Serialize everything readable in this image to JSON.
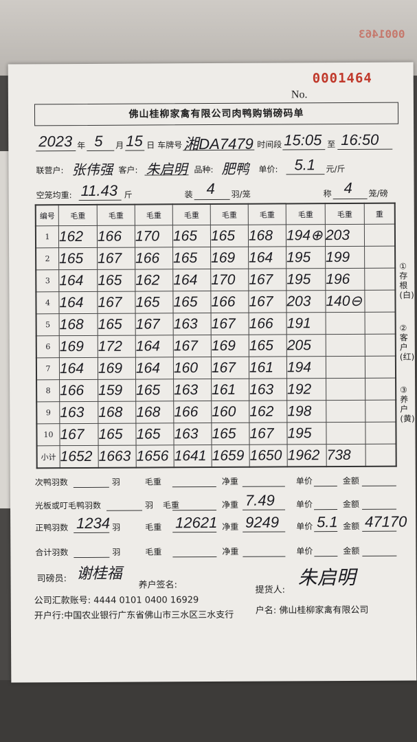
{
  "serial_no": "0001464",
  "no_label": "No.",
  "title": "佛山桂柳家禽有限公司肉鸭购销磅码单",
  "header": {
    "year": "2023",
    "year_label": "年",
    "month": "5",
    "month_label": "月",
    "day": "15",
    "day_label": "日",
    "plate_label": "车牌号",
    "plate": "湘DA7479",
    "time_label": "时间段",
    "time_from": "15:05",
    "to_label": "至",
    "time_to": "16:50",
    "partner_label": "联营户:",
    "partner": "张伟强",
    "customer_label": "客户:",
    "customer": "朱启明",
    "breed_label": "品种:",
    "breed": "肥鸭",
    "price_label": "单价:",
    "price": "5.1",
    "price_unit": "元/斤",
    "cage_weight_label": "空笼均重:",
    "cage_weight": "11.43",
    "cage_weight_unit": "斤",
    "load_label": "装",
    "per_cage": "4",
    "per_cage_unit": "羽/笼",
    "weigh_label": "称",
    "cages_per_weigh": "4",
    "cages_per_weigh_unit": "笼/磅"
  },
  "table": {
    "headers": [
      "编号",
      "毛重",
      "毛重",
      "毛重",
      "毛重",
      "毛重",
      "毛重",
      "毛重",
      "毛重",
      "重"
    ],
    "rows": [
      [
        "1",
        "162",
        "166",
        "170",
        "165",
        "165",
        "168",
        "194⊕",
        "203",
        ""
      ],
      [
        "2",
        "165",
        "167",
        "166",
        "165",
        "169",
        "164",
        "195",
        "199",
        ""
      ],
      [
        "3",
        "164",
        "165",
        "162",
        "164",
        "170",
        "167",
        "195",
        "196",
        ""
      ],
      [
        "4",
        "164",
        "167",
        "165",
        "165",
        "166",
        "167",
        "203",
        "140⊖",
        ""
      ],
      [
        "5",
        "168",
        "165",
        "167",
        "163",
        "167",
        "166",
        "191",
        "",
        ""
      ],
      [
        "6",
        "169",
        "172",
        "164",
        "167",
        "169",
        "165",
        "205",
        "",
        ""
      ],
      [
        "7",
        "164",
        "169",
        "164",
        "160",
        "167",
        "161",
        "194",
        "",
        ""
      ],
      [
        "8",
        "166",
        "159",
        "165",
        "163",
        "161",
        "163",
        "192",
        "",
        ""
      ],
      [
        "9",
        "163",
        "168",
        "168",
        "166",
        "160",
        "162",
        "198",
        "",
        ""
      ],
      [
        "10",
        "167",
        "165",
        "165",
        "163",
        "165",
        "167",
        "195",
        "",
        ""
      ]
    ],
    "subtotal": [
      "小计",
      "1652",
      "1663",
      "1656",
      "1641",
      "1659",
      "1650",
      "1962",
      "738",
      ""
    ]
  },
  "side_notes": [
    "①存根(白)",
    "②客户(红)",
    "③养户(黄)"
  ],
  "summary": [
    {
      "label": "次鸭羽数",
      "count": "",
      "unit": "羽",
      "gross_label": "毛重",
      "gross": "",
      "net_label": "净重",
      "net": "",
      "price_label": "单价",
      "price": "",
      "amount_label": "金额",
      "amount": ""
    },
    {
      "label": "光板或叮毛鸭羽数",
      "count": "",
      "unit": "羽",
      "gross_label": "毛重",
      "gross": "",
      "net_label": "净重",
      "net": "7.49",
      "price_label": "单价",
      "price": "",
      "amount_label": "金额",
      "amount": ""
    },
    {
      "label": "正鸭羽数",
      "count": "1234",
      "unit": "羽",
      "gross_label": "毛重",
      "gross": "12621",
      "net_label": "净重",
      "net": "9249",
      "price_label": "单价",
      "price": "5.1",
      "amount_label": "金额",
      "amount": "47170"
    },
    {
      "label": "合计羽数",
      "count": "",
      "unit": "羽",
      "gross_label": "毛重",
      "gross": "",
      "net_label": "净重",
      "net": "",
      "price_label": "单价",
      "price": "",
      "amount_label": "金额",
      "amount": ""
    }
  ],
  "footer": {
    "weigher_label": "司磅员:",
    "weigher": "谢桂福",
    "farmer_sign_label": "养户签名:",
    "pickup_label": "提货人:",
    "pickup": "朱启明",
    "account_label": "公司汇款账号:",
    "account": "4444 0101 0400 16929",
    "account_name_label": "户名:",
    "account_name": "佛山桂柳家禽有限公司",
    "bank_label": "开户行:",
    "bank": "中国农业银行广东省佛山市三水区三水支行"
  },
  "colors": {
    "serial": "#c0392b",
    "ink": "#1c1c22",
    "paper": "#eeece8"
  }
}
